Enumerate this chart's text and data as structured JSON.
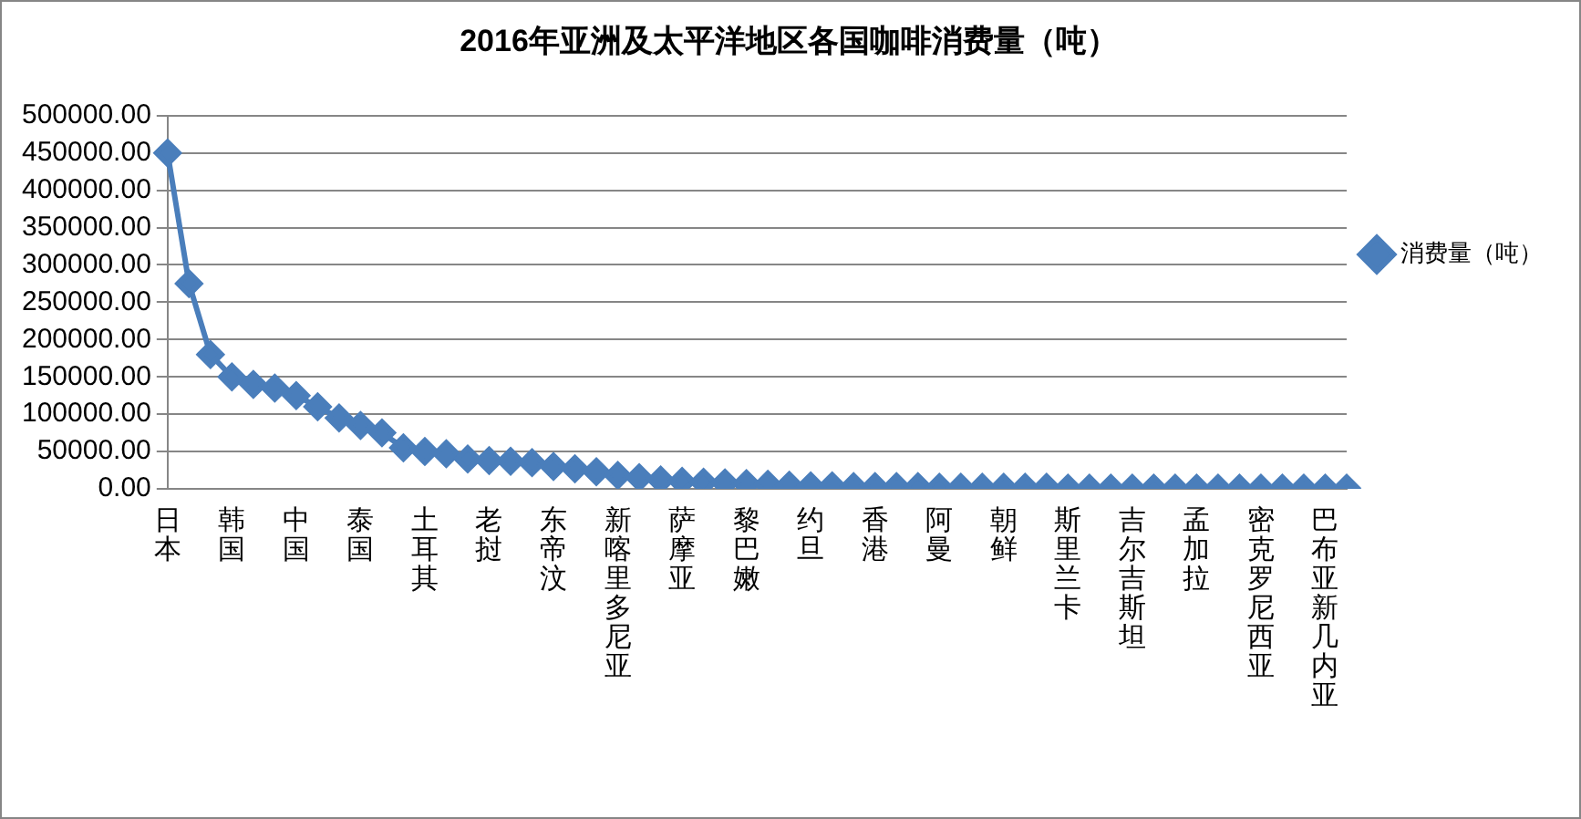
{
  "chart_data": {
    "type": "line",
    "title": "2016年亚洲及太平洋地区各国咖啡消费量（吨）",
    "categories": [
      "日本",
      null,
      null,
      "韩国",
      null,
      null,
      "中国",
      null,
      null,
      "泰国",
      null,
      null,
      "土耳其",
      null,
      null,
      "老挝",
      null,
      null,
      "东帝汶",
      null,
      null,
      "新喀里多尼亚",
      null,
      null,
      "萨摩亚",
      null,
      null,
      "黎巴嫩",
      null,
      null,
      "约旦",
      null,
      null,
      "香港",
      null,
      null,
      "阿曼",
      null,
      null,
      "朝鲜",
      null,
      null,
      "斯里兰卡",
      null,
      null,
      "吉尔吉斯坦",
      null,
      null,
      "孟加拉",
      null,
      null,
      "密克罗尼西亚",
      null,
      null,
      "巴布亚新几内亚",
      null
    ],
    "series": [
      {
        "name": "消费量（吨）",
        "color": "#4a7ebb",
        "values": [
          450000,
          275000,
          180000,
          150000,
          140000,
          135000,
          125000,
          110000,
          95000,
          85000,
          75000,
          55000,
          50000,
          47000,
          40000,
          38000,
          37000,
          35000,
          30000,
          27000,
          23000,
          18000,
          15000,
          12000,
          10000,
          9000,
          8000,
          7000,
          6000,
          5000,
          4000,
          4000,
          3000,
          3000,
          3000,
          3000,
          2000,
          2000,
          2000,
          2000,
          2000,
          2000,
          1000,
          1000,
          1000,
          1000,
          1000,
          1000,
          1000,
          1000,
          1000,
          1000,
          1000,
          1000,
          1000,
          1000
        ]
      }
    ],
    "ylim": [
      0,
      500000
    ],
    "yticks": [
      {
        "value": 0,
        "label": "0.00"
      },
      {
        "value": 50000,
        "label": "50000.00"
      },
      {
        "value": 100000,
        "label": "100000.00"
      },
      {
        "value": 150000,
        "label": "150000.00"
      },
      {
        "value": 200000,
        "label": "200000.00"
      },
      {
        "value": 250000,
        "label": "250000.00"
      },
      {
        "value": 300000,
        "label": "300000.00"
      },
      {
        "value": 350000,
        "label": "350000.00"
      },
      {
        "value": 400000,
        "label": "400000.00"
      },
      {
        "value": 450000,
        "label": "450000.00"
      },
      {
        "value": 500000,
        "label": "500000.00"
      }
    ],
    "grid": "y",
    "legend": "right",
    "marker": "diamond",
    "line_style": "solid"
  }
}
